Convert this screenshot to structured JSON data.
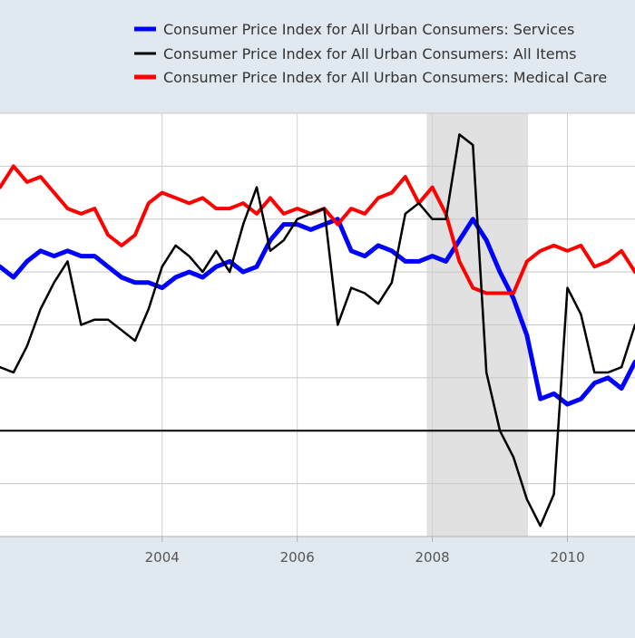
{
  "chart_data": {
    "type": "line",
    "title": "",
    "xlabel": "",
    "ylabel": "",
    "x_tick_labels": [
      "2004",
      "2006",
      "2008",
      "2010"
    ],
    "x_tick_years": [
      2004,
      2006,
      2008,
      2010
    ],
    "xlim": [
      2001.6,
      2011.0
    ],
    "ylim": [
      -2.0,
      6.0
    ],
    "y_gridlines": [
      -1,
      1,
      2,
      3,
      4,
      5
    ],
    "zero_line": 0,
    "recession": {
      "start": 2007.917,
      "end": 2009.417
    },
    "legend_position": "top",
    "series": [
      {
        "name": "Consumer Price Index for All Urban Consumers: Services",
        "color": "#0000ff",
        "x": [
          2001.6,
          2001.8,
          2002.0,
          2002.2,
          2002.4,
          2002.6,
          2002.8,
          2003.0,
          2003.2,
          2003.4,
          2003.6,
          2003.8,
          2004.0,
          2004.2,
          2004.4,
          2004.6,
          2004.8,
          2005.0,
          2005.2,
          2005.4,
          2005.6,
          2005.8,
          2006.0,
          2006.2,
          2006.4,
          2006.6,
          2006.8,
          2007.0,
          2007.2,
          2007.4,
          2007.6,
          2007.8,
          2008.0,
          2008.2,
          2008.4,
          2008.6,
          2008.8,
          2009.0,
          2009.2,
          2009.4,
          2009.6,
          2009.8,
          2010.0,
          2010.2,
          2010.4,
          2010.6,
          2010.8,
          2011.0
        ],
        "values": [
          3.1,
          2.9,
          3.2,
          3.4,
          3.3,
          3.4,
          3.3,
          3.3,
          3.1,
          2.9,
          2.8,
          2.8,
          2.7,
          2.9,
          3.0,
          2.9,
          3.1,
          3.2,
          3.0,
          3.1,
          3.6,
          3.9,
          3.9,
          3.8,
          3.9,
          4.0,
          3.4,
          3.3,
          3.5,
          3.4,
          3.2,
          3.2,
          3.3,
          3.2,
          3.6,
          4.0,
          3.6,
          3.0,
          2.5,
          1.8,
          0.6,
          0.7,
          0.5,
          0.6,
          0.9,
          1.0,
          0.8,
          1.3
        ]
      },
      {
        "name": "Consumer Price Index for All Urban Consumers: All Items",
        "color": "#000000",
        "x": [
          2001.6,
          2001.8,
          2002.0,
          2002.2,
          2002.4,
          2002.6,
          2002.8,
          2003.0,
          2003.2,
          2003.4,
          2003.6,
          2003.8,
          2004.0,
          2004.2,
          2004.4,
          2004.6,
          2004.8,
          2005.0,
          2005.2,
          2005.4,
          2005.6,
          2005.8,
          2006.0,
          2006.2,
          2006.4,
          2006.6,
          2006.8,
          2007.0,
          2007.2,
          2007.4,
          2007.6,
          2007.8,
          2008.0,
          2008.2,
          2008.4,
          2008.6,
          2008.8,
          2009.0,
          2009.2,
          2009.4,
          2009.6,
          2009.8,
          2010.0,
          2010.2,
          2010.4,
          2010.6,
          2010.8,
          2011.0
        ],
        "values": [
          1.2,
          1.1,
          1.6,
          2.3,
          2.8,
          3.2,
          2.0,
          2.1,
          2.1,
          1.9,
          1.7,
          2.3,
          3.1,
          3.5,
          3.3,
          3.0,
          3.4,
          3.0,
          3.9,
          4.6,
          3.4,
          3.6,
          4.0,
          4.1,
          4.2,
          2.0,
          2.7,
          2.6,
          2.4,
          2.8,
          4.1,
          4.3,
          4.0,
          4.0,
          5.6,
          5.4,
          1.1,
          0.0,
          -0.5,
          -1.3,
          -1.8,
          -1.2,
          2.7,
          2.2,
          1.1,
          1.1,
          1.2,
          2.0
        ]
      },
      {
        "name": "Consumer Price Index for All Urban Consumers: Medical Care",
        "color": "#ff0000",
        "x": [
          2001.6,
          2001.8,
          2002.0,
          2002.2,
          2002.4,
          2002.6,
          2002.8,
          2003.0,
          2003.2,
          2003.4,
          2003.6,
          2003.8,
          2004.0,
          2004.2,
          2004.4,
          2004.6,
          2004.8,
          2005.0,
          2005.2,
          2005.4,
          2005.6,
          2005.8,
          2006.0,
          2006.2,
          2006.4,
          2006.6,
          2006.8,
          2007.0,
          2007.2,
          2007.4,
          2007.6,
          2007.8,
          2008.0,
          2008.2,
          2008.4,
          2008.6,
          2008.8,
          2009.0,
          2009.2,
          2009.4,
          2009.6,
          2009.8,
          2010.0,
          2010.2,
          2010.4,
          2010.6,
          2010.8,
          2011.0
        ],
        "values": [
          4.6,
          5.0,
          4.7,
          4.8,
          4.5,
          4.2,
          4.1,
          4.2,
          3.7,
          3.5,
          3.7,
          4.3,
          4.5,
          4.4,
          4.3,
          4.4,
          4.2,
          4.2,
          4.3,
          4.1,
          4.4,
          4.1,
          4.2,
          4.1,
          4.2,
          3.9,
          4.2,
          4.1,
          4.4,
          4.5,
          4.8,
          4.3,
          4.6,
          4.1,
          3.2,
          2.7,
          2.6,
          2.6,
          2.6,
          3.2,
          3.4,
          3.5,
          3.4,
          3.5,
          3.1,
          3.2,
          3.4,
          3.0
        ]
      }
    ]
  }
}
